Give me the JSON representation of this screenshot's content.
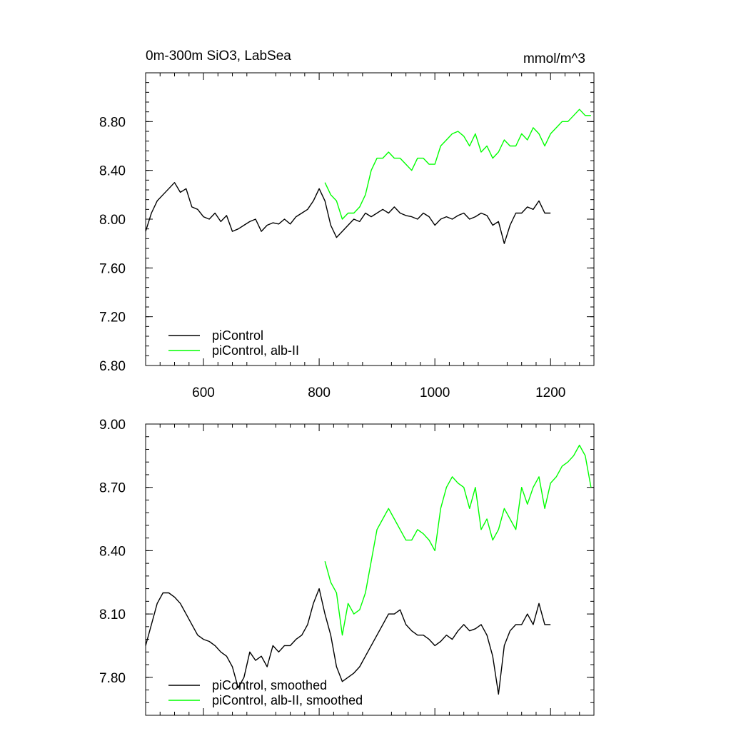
{
  "chart_data": [
    {
      "type": "line",
      "title": "0m-300m SiO3, LabSea",
      "units": "mmol/m^3",
      "xlim": [
        500,
        1275
      ],
      "ylim": [
        6.8,
        9.2
      ],
      "xticks": [
        600,
        800,
        1000,
        1200
      ],
      "xtick_labels": [
        "600",
        "800",
        "1000",
        "1200"
      ],
      "yticks": [
        6.8,
        7.2,
        7.6,
        8.0,
        8.4,
        8.8
      ],
      "ytick_labels": [
        "6.80",
        "7.20",
        "7.60",
        "8.00",
        "8.40",
        "8.80"
      ],
      "legend_position": "bottom-left",
      "series": [
        {
          "name": "piControl",
          "color": "#000000",
          "x": [
            500,
            510,
            520,
            530,
            540,
            550,
            560,
            570,
            580,
            590,
            600,
            610,
            620,
            630,
            640,
            650,
            660,
            670,
            680,
            690,
            700,
            710,
            720,
            730,
            740,
            750,
            760,
            770,
            780,
            790,
            800,
            810,
            820,
            830,
            840,
            850,
            860,
            870,
            880,
            890,
            900,
            910,
            920,
            930,
            940,
            950,
            960,
            970,
            980,
            990,
            1000,
            1010,
            1020,
            1030,
            1040,
            1050,
            1060,
            1070,
            1080,
            1090,
            1100,
            1110,
            1120,
            1130,
            1140,
            1150,
            1160,
            1170,
            1180,
            1190,
            1200
          ],
          "values": [
            7.9,
            8.05,
            8.15,
            8.2,
            8.25,
            8.3,
            8.22,
            8.25,
            8.1,
            8.08,
            8.02,
            8.0,
            8.05,
            7.98,
            8.03,
            7.9,
            7.92,
            7.95,
            7.98,
            8.0,
            7.9,
            7.95,
            7.97,
            7.96,
            8.0,
            7.96,
            8.02,
            8.05,
            8.08,
            8.15,
            8.25,
            8.15,
            7.95,
            7.85,
            7.9,
            7.95,
            8.0,
            7.98,
            8.05,
            8.02,
            8.05,
            8.08,
            8.05,
            8.1,
            8.05,
            8.03,
            8.02,
            8.0,
            8.05,
            8.02,
            7.95,
            8.0,
            8.02,
            8.0,
            8.03,
            8.05,
            8.0,
            8.02,
            8.05,
            8.03,
            7.95,
            7.98,
            7.8,
            7.95,
            8.05,
            8.05,
            8.1,
            8.08,
            8.15,
            8.05,
            8.05
          ]
        },
        {
          "name": "piControl, alb-II",
          "color": "#00ff00",
          "x": [
            810,
            820,
            830,
            840,
            850,
            860,
            870,
            880,
            890,
            900,
            910,
            920,
            930,
            940,
            950,
            960,
            970,
            980,
            990,
            1000,
            1010,
            1020,
            1030,
            1040,
            1050,
            1060,
            1070,
            1080,
            1090,
            1100,
            1110,
            1120,
            1130,
            1140,
            1150,
            1160,
            1170,
            1180,
            1190,
            1200,
            1210,
            1220,
            1230,
            1240,
            1250,
            1260,
            1270
          ],
          "values": [
            8.3,
            8.2,
            8.15,
            8.0,
            8.05,
            8.05,
            8.1,
            8.2,
            8.4,
            8.5,
            8.5,
            8.55,
            8.5,
            8.5,
            8.45,
            8.4,
            8.5,
            8.5,
            8.45,
            8.45,
            8.6,
            8.65,
            8.7,
            8.72,
            8.68,
            8.6,
            8.7,
            8.55,
            8.6,
            8.5,
            8.55,
            8.65,
            8.6,
            8.6,
            8.7,
            8.65,
            8.75,
            8.7,
            8.6,
            8.7,
            8.75,
            8.8,
            8.8,
            8.85,
            8.9,
            8.85,
            8.85
          ]
        }
      ]
    },
    {
      "type": "line",
      "xlim": [
        500,
        1275
      ],
      "ylim": [
        7.62,
        9.0
      ],
      "xticks": [
        600,
        800,
        1000,
        1200
      ],
      "yticks": [
        7.8,
        8.1,
        8.4,
        8.7,
        9.0
      ],
      "ytick_labels": [
        "7.80",
        "8.10",
        "8.40",
        "8.70",
        "9.00"
      ],
      "legend_position": "bottom-left",
      "series": [
        {
          "name": "piControl, smoothed",
          "color": "#000000",
          "x": [
            500,
            510,
            520,
            530,
            540,
            550,
            560,
            570,
            580,
            590,
            600,
            610,
            620,
            630,
            640,
            650,
            660,
            670,
            680,
            690,
            700,
            710,
            720,
            730,
            740,
            750,
            760,
            770,
            780,
            790,
            800,
            810,
            820,
            830,
            840,
            850,
            860,
            870,
            880,
            890,
            900,
            910,
            920,
            930,
            940,
            950,
            960,
            970,
            980,
            990,
            1000,
            1010,
            1020,
            1030,
            1040,
            1050,
            1060,
            1070,
            1080,
            1090,
            1100,
            1110,
            1120,
            1130,
            1140,
            1150,
            1160,
            1170,
            1180,
            1190,
            1200
          ],
          "values": [
            7.95,
            8.05,
            8.15,
            8.2,
            8.2,
            8.18,
            8.15,
            8.1,
            8.05,
            8.0,
            7.98,
            7.97,
            7.95,
            7.92,
            7.9,
            7.85,
            7.75,
            7.8,
            7.92,
            7.88,
            7.9,
            7.85,
            7.95,
            7.92,
            7.95,
            7.95,
            7.98,
            8.0,
            8.05,
            8.15,
            8.22,
            8.1,
            8.0,
            7.85,
            7.78,
            7.8,
            7.82,
            7.85,
            7.9,
            7.95,
            8.0,
            8.05,
            8.1,
            8.1,
            8.12,
            8.05,
            8.02,
            8.0,
            8.0,
            7.98,
            7.95,
            7.97,
            8.0,
            7.98,
            8.02,
            8.05,
            8.02,
            8.03,
            8.05,
            8.0,
            7.9,
            7.72,
            7.95,
            8.02,
            8.05,
            8.05,
            8.1,
            8.05,
            8.15,
            8.05,
            8.05
          ]
        },
        {
          "name": "piControl, alb-II, smoothed",
          "color": "#00ff00",
          "x": [
            810,
            820,
            830,
            840,
            850,
            860,
            870,
            880,
            890,
            900,
            910,
            920,
            930,
            940,
            950,
            960,
            970,
            980,
            990,
            1000,
            1010,
            1020,
            1030,
            1040,
            1050,
            1060,
            1070,
            1080,
            1090,
            1100,
            1110,
            1120,
            1130,
            1140,
            1150,
            1160,
            1170,
            1180,
            1190,
            1200,
            1210,
            1220,
            1230,
            1240,
            1250,
            1260,
            1270
          ],
          "values": [
            8.35,
            8.25,
            8.2,
            8.0,
            8.15,
            8.1,
            8.12,
            8.2,
            8.35,
            8.5,
            8.55,
            8.6,
            8.55,
            8.5,
            8.45,
            8.45,
            8.5,
            8.48,
            8.45,
            8.4,
            8.6,
            8.7,
            8.75,
            8.72,
            8.7,
            8.6,
            8.7,
            8.5,
            8.55,
            8.45,
            8.5,
            8.6,
            8.55,
            8.5,
            8.7,
            8.62,
            8.7,
            8.75,
            8.6,
            8.72,
            8.75,
            8.8,
            8.82,
            8.85,
            8.9,
            8.85,
            8.7
          ]
        }
      ]
    }
  ]
}
